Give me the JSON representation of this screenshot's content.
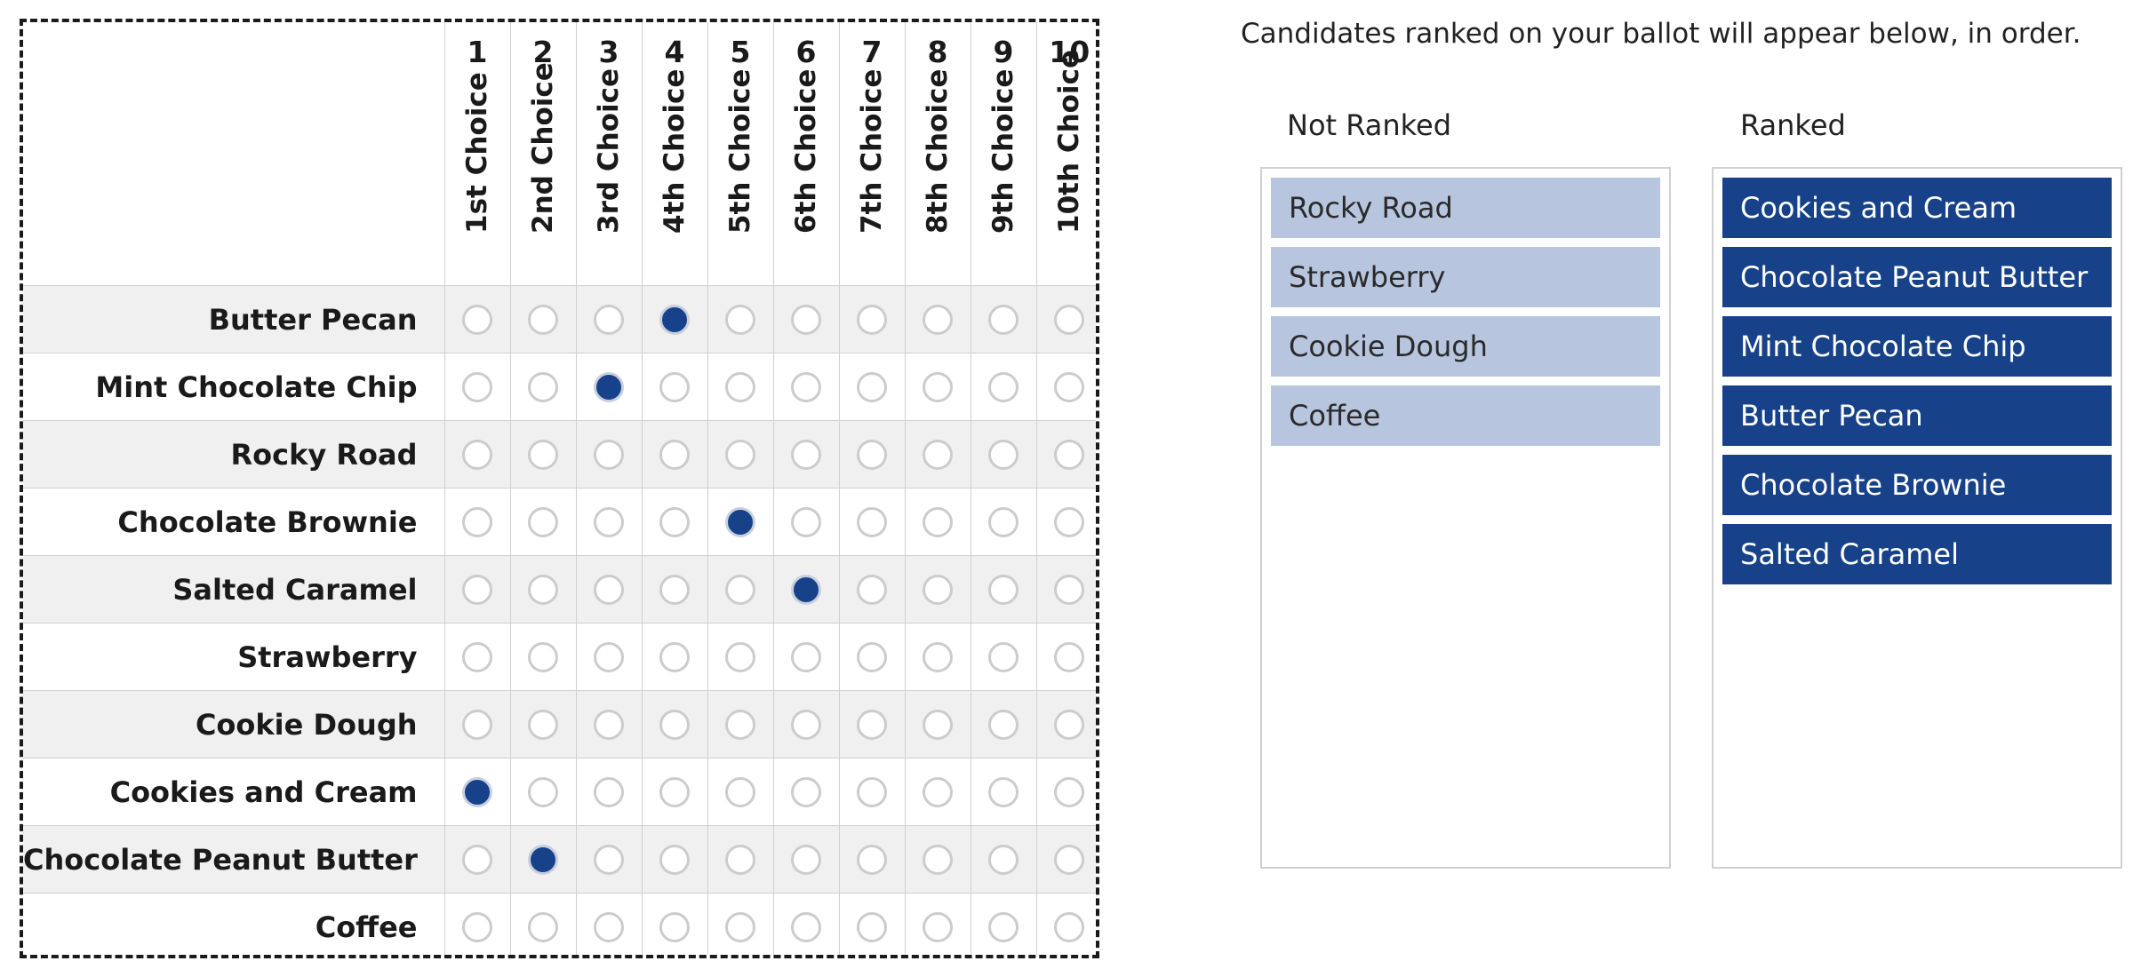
{
  "ballot": {
    "rank_numbers": [
      "1",
      "2",
      "3",
      "4",
      "5",
      "6",
      "7",
      "8",
      "9",
      "10"
    ],
    "choice_labels": [
      "1st Choice",
      "2nd Choice",
      "3rd Choice",
      "4th Choice",
      "5th Choice",
      "6th Choice",
      "7th Choice",
      "8th Choice",
      "9th Choice",
      "10th Choice"
    ],
    "candidates": [
      {
        "name": "Butter Pecan",
        "selected_rank": 4
      },
      {
        "name": "Mint Chocolate Chip",
        "selected_rank": 3
      },
      {
        "name": "Rocky Road",
        "selected_rank": null
      },
      {
        "name": "Chocolate Brownie",
        "selected_rank": 5
      },
      {
        "name": "Salted Caramel",
        "selected_rank": 6
      },
      {
        "name": "Strawberry",
        "selected_rank": null
      },
      {
        "name": "Cookie Dough",
        "selected_rank": null
      },
      {
        "name": "Cookies and Cream",
        "selected_rank": 1
      },
      {
        "name": "Chocolate Peanut Butter",
        "selected_rank": 2
      },
      {
        "name": "Coffee",
        "selected_rank": null
      }
    ]
  },
  "panel": {
    "instructions": "Candidates ranked on your ballot will appear below, in order.",
    "not_ranked_heading": "Not Ranked",
    "ranked_heading": "Ranked",
    "not_ranked_items": [
      "Rocky Road",
      "Strawberry",
      "Cookie Dough",
      "Coffee"
    ],
    "ranked_items": [
      "Cookies and Cream",
      "Chocolate Peanut Butter",
      "Mint Chocolate Chip",
      "Butter Pecan",
      "Chocolate Brownie",
      "Salted Caramel"
    ]
  },
  "colors": {
    "selected_fill": "#17428a",
    "unranked_item_bg": "#b8c5de",
    "ranked_item_bg": "#17428a"
  }
}
